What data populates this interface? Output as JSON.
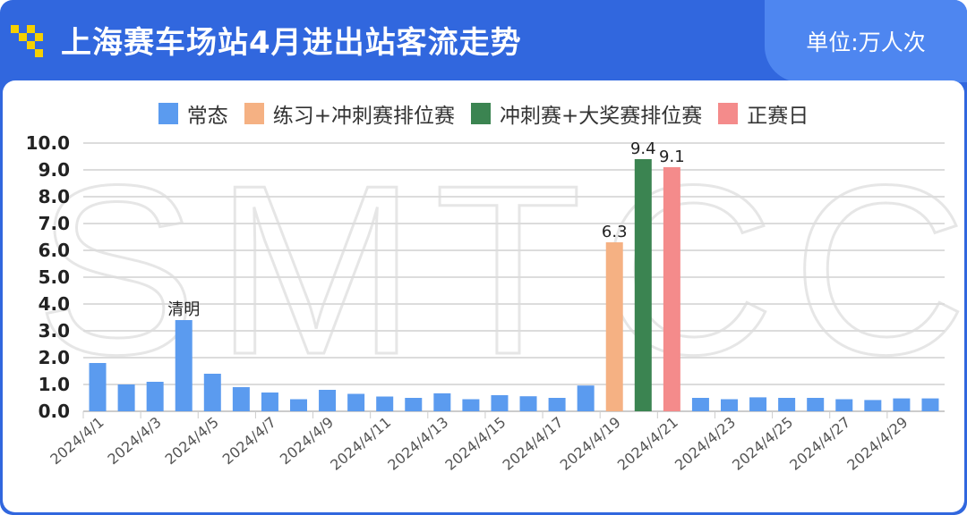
{
  "header": {
    "title": "上海赛车场站4月进出站客流走势",
    "unit": "单位:万人次",
    "watermark": "SMTCC"
  },
  "colors": {
    "header": "#3167de",
    "unit_bg": "#4e86f0",
    "normal": "#5b9bef",
    "practice": "#f5b183",
    "sprint": "#3b8451",
    "race": "#f48b8b"
  },
  "chart_data": {
    "type": "bar",
    "legend": [
      {
        "name": "常态",
        "color": "#5b9bef"
      },
      {
        "name": "练习+冲刺赛排位赛",
        "color": "#f5b183"
      },
      {
        "name": "冲刺赛+大奖赛排位赛",
        "color": "#3b8451"
      },
      {
        "name": "正赛日",
        "color": "#f48b8b"
      }
    ],
    "legend_position": "top",
    "ylim": [
      0,
      10
    ],
    "yticks": [
      "0.0",
      "1.0",
      "2.0",
      "3.0",
      "4.0",
      "5.0",
      "6.0",
      "7.0",
      "8.0",
      "9.0",
      "10.0"
    ],
    "grid": true,
    "categories": [
      "2024/4/1",
      "2024/4/2",
      "2024/4/3",
      "2024/4/4",
      "2024/4/5",
      "2024/4/6",
      "2024/4/7",
      "2024/4/8",
      "2024/4/9",
      "2024/4/10",
      "2024/4/11",
      "2024/4/12",
      "2024/4/13",
      "2024/4/14",
      "2024/4/15",
      "2024/4/16",
      "2024/4/17",
      "2024/4/18",
      "2024/4/19",
      "2024/4/20",
      "2024/4/21",
      "2024/4/22",
      "2024/4/23",
      "2024/4/24",
      "2024/4/25",
      "2024/4/26",
      "2024/4/27",
      "2024/4/28",
      "2024/4/29",
      "2024/4/30"
    ],
    "xticks_shown": [
      "2024/4/1",
      "2024/4/3",
      "2024/4/5",
      "2024/4/7",
      "2024/4/9",
      "2024/4/11",
      "2024/4/13",
      "2024/4/15",
      "2024/4/17",
      "2024/4/19",
      "2024/4/21",
      "2024/4/23",
      "2024/4/25",
      "2024/4/27",
      "2024/4/29"
    ],
    "values": [
      1.8,
      1.0,
      1.1,
      3.4,
      1.4,
      0.9,
      0.7,
      0.45,
      0.8,
      0.65,
      0.55,
      0.5,
      0.67,
      0.45,
      0.6,
      0.56,
      0.5,
      0.96,
      6.3,
      9.4,
      9.1,
      0.5,
      0.45,
      0.52,
      0.5,
      0.5,
      0.45,
      0.42,
      0.48,
      0.48
    ],
    "series_of_bar": [
      0,
      0,
      0,
      0,
      0,
      0,
      0,
      0,
      0,
      0,
      0,
      0,
      0,
      0,
      0,
      0,
      0,
      0,
      1,
      2,
      3,
      0,
      0,
      0,
      0,
      0,
      0,
      0,
      0,
      0
    ],
    "data_labels": {
      "2024/4/4": "清明",
      "2024/4/19": "6.3",
      "2024/4/20": "9.4",
      "2024/4/21": "9.1"
    }
  }
}
